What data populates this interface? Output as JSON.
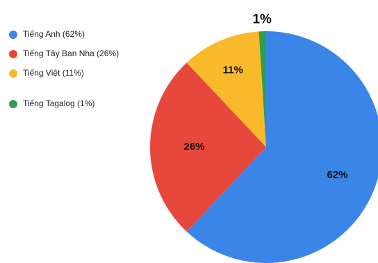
{
  "chart_data": {
    "type": "pie",
    "title": "",
    "legend_position": "top-left",
    "slices": [
      {
        "label": "Tiếng Anh (62%)",
        "value": 62,
        "data_label": "62%",
        "color": "#3a86e8"
      },
      {
        "label": "Tiếng Tây Ban Nha (26%)",
        "value": 26,
        "data_label": "26%",
        "color": "#e8483b"
      },
      {
        "label": "Tiếng Việt (11%)",
        "value": 11,
        "data_label": "11%",
        "color": "#f8b92b"
      },
      {
        "label": "Tiếng Tagalog (1%)",
        "value": 1,
        "data_label": "1%",
        "color": "#2f9e4c"
      }
    ]
  }
}
